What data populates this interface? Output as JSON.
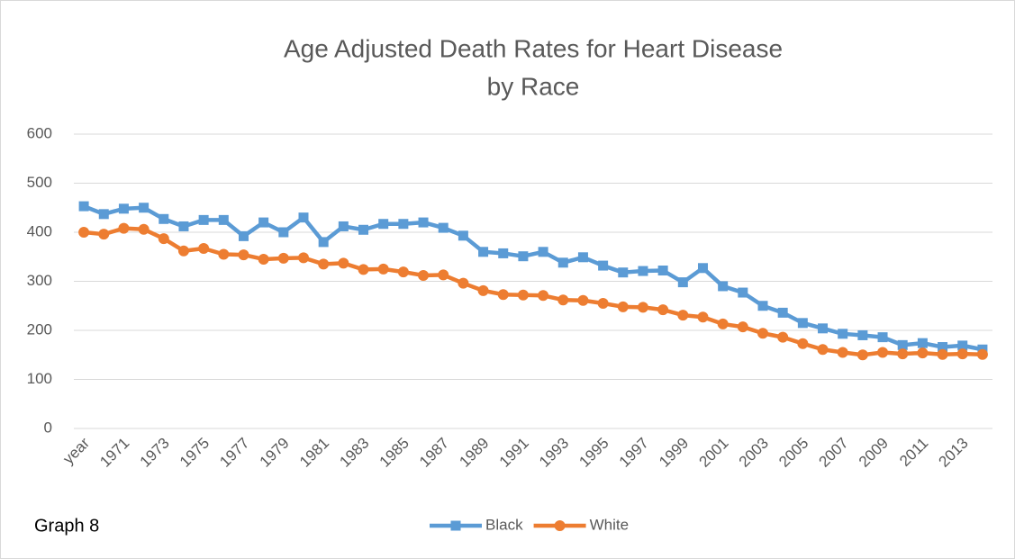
{
  "chart_data": {
    "type": "line",
    "title": [
      "Age Adjusted Death Rates for Heart Disease",
      "by Race"
    ],
    "annotation": "Graph 8",
    "categories": [
      "year",
      null,
      "1971",
      null,
      "1973",
      null,
      "1975",
      null,
      "1977",
      null,
      "1979",
      null,
      "1981",
      null,
      "1983",
      null,
      "1985",
      null,
      "1987",
      null,
      "1989",
      null,
      "1991",
      null,
      "1993",
      null,
      "1995",
      null,
      "1997",
      null,
      "1999",
      null,
      "2001",
      null,
      "2003",
      null,
      "2005",
      null,
      "2007",
      null,
      "2009",
      null,
      "2011",
      null,
      "2013",
      null
    ],
    "series": [
      {
        "name": "Black",
        "color": "#5b9bd5",
        "marker": "square",
        "values": [
          453,
          437,
          448,
          450,
          427,
          412,
          425,
          425,
          392,
          420,
          400,
          430,
          380,
          412,
          405,
          417,
          417,
          420,
          409,
          393,
          360,
          357,
          351,
          360,
          338,
          349,
          332,
          318,
          321,
          322,
          298,
          327,
          290,
          277,
          250,
          236,
          215,
          204,
          193,
          190,
          186,
          170,
          174,
          166,
          169,
          161
        ]
      },
      {
        "name": "White",
        "color": "#ed7d31",
        "marker": "circle",
        "values": [
          400,
          396,
          408,
          406,
          387,
          362,
          367,
          355,
          354,
          345,
          347,
          348,
          335,
          337,
          324,
          325,
          319,
          312,
          313,
          296,
          281,
          273,
          272,
          271,
          262,
          261,
          255,
          248,
          247,
          242,
          231,
          227,
          213,
          207,
          194,
          186,
          173,
          161,
          155,
          150,
          155,
          152,
          154,
          151,
          152,
          151
        ]
      }
    ],
    "ylim": [
      0,
      600
    ],
    "yticks": [
      0,
      100,
      200,
      300,
      400,
      500,
      600
    ],
    "grid": true,
    "legend": "bottom"
  }
}
